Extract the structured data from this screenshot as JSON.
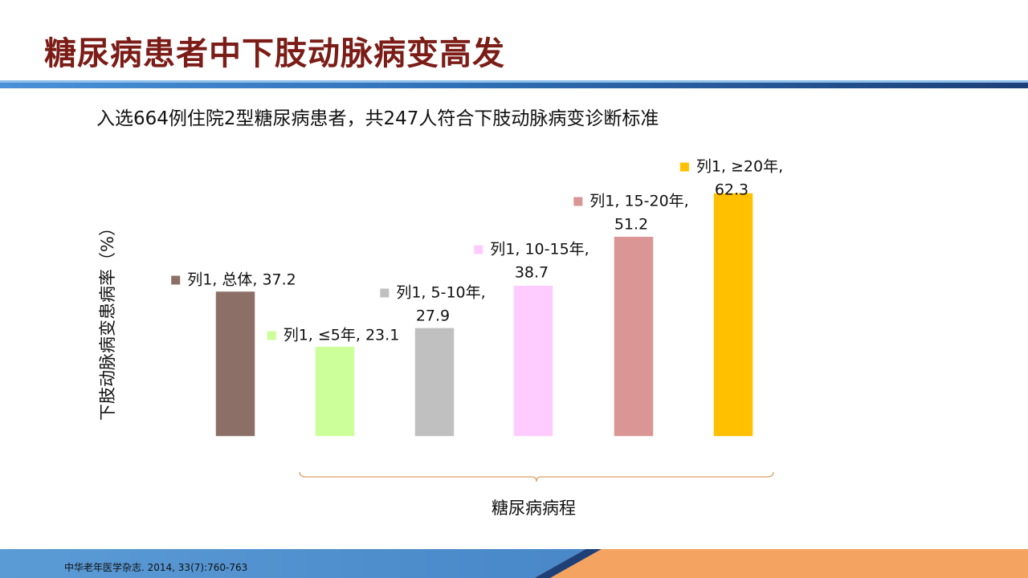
{
  "slide": {
    "title": "糖尿病患者中下肢动脉病变高发",
    "subtitle": "入选664例住院2型糖尿病患者，共247人符合下肢动脉病变诊断标准",
    "footer": "中华老年医学杂志. 2014, 33(7):760-763"
  },
  "chart_data": {
    "type": "bar",
    "categories": [
      "总体",
      "≤5年",
      "5-10年",
      "10-15年",
      "15-20年",
      "≥20年"
    ],
    "series": [
      {
        "name": "列1",
        "values": [
          37.2,
          23.1,
          27.9,
          38.7,
          51.2,
          62.3
        ]
      }
    ],
    "data_labels": [
      [
        "列1, 总体, 37.2"
      ],
      [
        "列1, ≤5年, 23.1"
      ],
      [
        "列1, 5-10年,",
        "27.9"
      ],
      [
        "列1, 10-15年,",
        "38.7"
      ],
      [
        "列1, 15-20年,",
        "51.2"
      ],
      [
        "列1, ≥20年,",
        "62.3"
      ]
    ],
    "bar_colors": [
      "#8c7068",
      "#ccff99",
      "#c0c0c0",
      "#ffccff",
      "#d99694",
      "#ffc000"
    ],
    "xlabel": "糖尿病病程",
    "ylabel": "下肢动脉病变患病率（%）",
    "ylim": [
      0,
      70
    ],
    "grid": false,
    "legend": "none"
  }
}
